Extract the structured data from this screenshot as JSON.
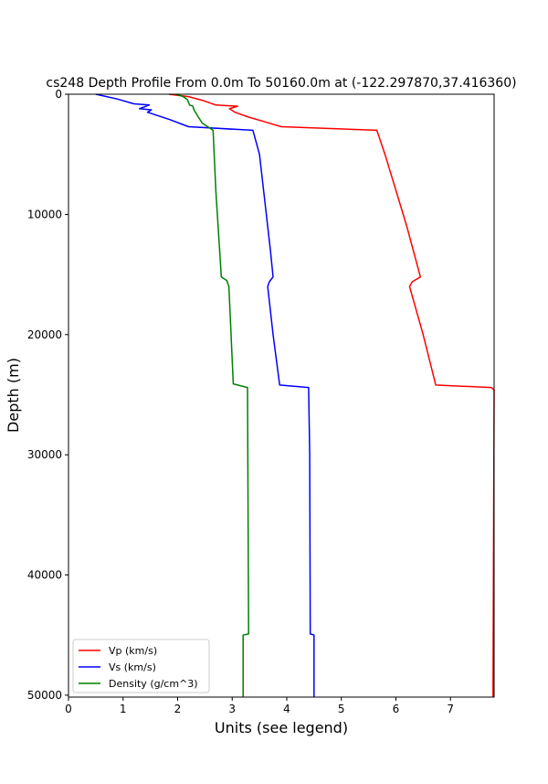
{
  "chart_data": {
    "type": "line",
    "title": "cs248 Depth Profile From 0.0m To 50160.0m at (-122.297870,37.416360)",
    "xlabel": "Units (see legend)",
    "ylabel": "Depth (m)",
    "xlim": [
      0,
      7.8
    ],
    "ylim": [
      50160,
      0
    ],
    "y_inverted": true,
    "x_ticks": [
      0,
      1,
      2,
      3,
      4,
      5,
      6,
      7
    ],
    "y_ticks": [
      0,
      10000,
      20000,
      30000,
      40000,
      50000
    ],
    "legend_position": "lower-left",
    "grid": false,
    "series": [
      {
        "name": "Vp (km/s)",
        "color": "#ff0000",
        "points": [
          [
            1.84,
            0
          ],
          [
            2.2,
            200
          ],
          [
            2.45,
            500
          ],
          [
            2.7,
            900
          ],
          [
            3.1,
            1000
          ],
          [
            2.95,
            1200
          ],
          [
            3.05,
            1500
          ],
          [
            3.3,
            1900
          ],
          [
            3.6,
            2300
          ],
          [
            3.9,
            2700
          ],
          [
            5.65,
            3000
          ],
          [
            5.8,
            5000
          ],
          [
            6.0,
            8000
          ],
          [
            6.2,
            11000
          ],
          [
            6.45,
            15200
          ],
          [
            6.3,
            15600
          ],
          [
            6.25,
            16000
          ],
          [
            6.5,
            20000
          ],
          [
            6.73,
            24200
          ],
          [
            7.75,
            24400
          ],
          [
            7.8,
            24600
          ],
          [
            7.78,
            50160
          ]
        ]
      },
      {
        "name": "Vs (km/s)",
        "color": "#0000ff",
        "points": [
          [
            0.5,
            0
          ],
          [
            0.9,
            400
          ],
          [
            1.2,
            800
          ],
          [
            1.48,
            900
          ],
          [
            1.3,
            1200
          ],
          [
            1.52,
            1300
          ],
          [
            1.45,
            1500
          ],
          [
            1.85,
            2100
          ],
          [
            2.2,
            2700
          ],
          [
            3.38,
            3000
          ],
          [
            3.5,
            5000
          ],
          [
            3.6,
            9000
          ],
          [
            3.7,
            13000
          ],
          [
            3.75,
            15200
          ],
          [
            3.68,
            15600
          ],
          [
            3.65,
            16000
          ],
          [
            3.75,
            20000
          ],
          [
            3.87,
            24200
          ],
          [
            4.4,
            24400
          ],
          [
            4.42,
            30000
          ],
          [
            4.43,
            44900
          ],
          [
            4.5,
            45000
          ],
          [
            4.5,
            50160
          ]
        ]
      },
      {
        "name": "Density (g/cm^3)",
        "color": "#008000",
        "points": [
          [
            1.97,
            0
          ],
          [
            2.1,
            200
          ],
          [
            2.18,
            450
          ],
          [
            2.22,
            900
          ],
          [
            2.28,
            1000
          ],
          [
            2.3,
            1300
          ],
          [
            2.38,
            1900
          ],
          [
            2.45,
            2400
          ],
          [
            2.65,
            3000
          ],
          [
            2.7,
            8000
          ],
          [
            2.77,
            13000
          ],
          [
            2.8,
            15200
          ],
          [
            2.9,
            15500
          ],
          [
            2.94,
            16000
          ],
          [
            2.98,
            20000
          ],
          [
            3.02,
            24100
          ],
          [
            3.28,
            24400
          ],
          [
            3.3,
            44900
          ],
          [
            3.2,
            45000
          ],
          [
            3.2,
            50160
          ]
        ]
      }
    ]
  }
}
